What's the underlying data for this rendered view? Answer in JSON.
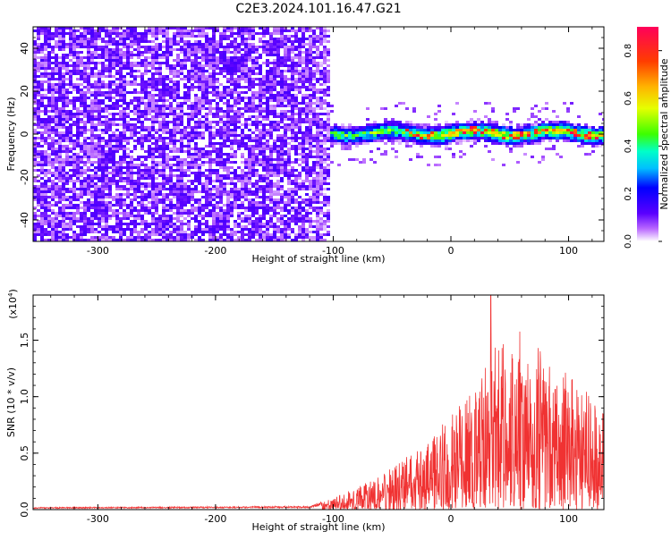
{
  "title": "C2E3.2024.101.16.47.G21",
  "chart_data": [
    {
      "type": "heatmap",
      "xlabel": "Height of straight line (km)",
      "ylabel": "Frequency (Hz)",
      "xlim": [
        -355,
        130
      ],
      "ylim": [
        -50,
        50
      ],
      "xticks": [
        -300,
        -200,
        -100,
        0,
        100
      ],
      "yticks": [
        -40,
        -20,
        0,
        20,
        40
      ],
      "colorbar": {
        "label": "Normalized spectral amplitude",
        "range": [
          0.0,
          0.9
        ],
        "ticks": [
          0.0,
          0.2,
          0.4,
          0.6,
          0.8
        ],
        "colors": [
          "#ffffff",
          "#b866ff",
          "#5a00ff",
          "#0000ff",
          "#00bfff",
          "#00ffc8",
          "#3cff00",
          "#e6ff00",
          "#ffb400",
          "#ff3c00",
          "#ff005a"
        ]
      },
      "regions": [
        {
          "x_range": [
            -355,
            -105
          ],
          "frequency_range": [
            -50,
            50
          ],
          "level": 0.12
        },
        {
          "x_range": [
            -105,
            130
          ],
          "frequency_range": [
            -5,
            5
          ],
          "level": 0.35
        },
        {
          "x_range": [
            -30,
            130
          ],
          "frequency_range": [
            -1,
            2
          ],
          "level": 0.6
        }
      ],
      "grid": false
    },
    {
      "type": "line",
      "xlabel": "Height of straight line (km)",
      "ylabel": "SNR (10 * v/v)",
      "yscale_label": "(x10",
      "yscale_exp": "4",
      "yscale_close": ")",
      "xlim": [
        -355,
        130
      ],
      "ylim": [
        0,
        1.9
      ],
      "xticks": [
        -300,
        -200,
        -100,
        0,
        100
      ],
      "yticks": [
        "0.0",
        "0.5",
        "1.0",
        "1.5"
      ],
      "color": "#f03232",
      "envelope": {
        "x": [
          -355,
          -120,
          -110,
          -100,
          -80,
          -60,
          -40,
          -20,
          0,
          20,
          40,
          60,
          80,
          100,
          120,
          130
        ],
        "y_max": [
          0.02,
          0.03,
          0.07,
          0.1,
          0.2,
          0.3,
          0.45,
          0.6,
          0.85,
          1.05,
          1.5,
          1.6,
          1.4,
          1.2,
          1.0,
          0.9
        ]
      },
      "peak": {
        "x": 34,
        "y": 1.9
      },
      "grid": false
    }
  ]
}
